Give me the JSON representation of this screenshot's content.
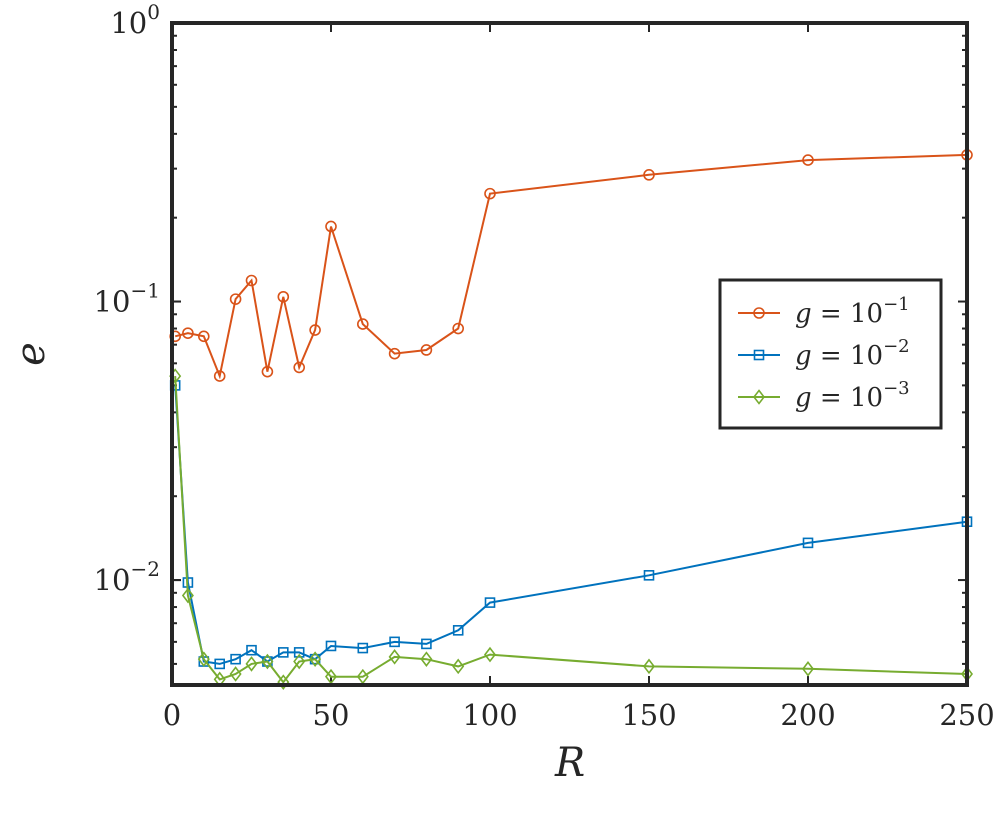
{
  "chart_data": {
    "type": "line",
    "title": "",
    "xlabel": "R",
    "ylabel": "e",
    "xlim": [
      0,
      250
    ],
    "ylim": [
      0.0042,
      1
    ],
    "yscale": "log",
    "x_ticks": [
      0,
      50,
      100,
      150,
      200,
      250
    ],
    "x_tick_labels": [
      "0",
      "50",
      "100",
      "150",
      "200",
      "250"
    ],
    "y_ticks": [
      0.01,
      0.1,
      1
    ],
    "y_tick_labels": [
      {
        "base": "10",
        "exp": "−2"
      },
      {
        "base": "10",
        "exp": "−1"
      },
      {
        "base": "10",
        "exp": "0"
      }
    ],
    "legend_position": "right",
    "series": [
      {
        "name": "g = 10^-1",
        "legend_main": "g = 10",
        "legend_exp": "−1",
        "color": "#D95319",
        "marker": "circle",
        "x": [
          1,
          5,
          10,
          15,
          20,
          25,
          30,
          35,
          40,
          45,
          50,
          60,
          70,
          80,
          90,
          100,
          150,
          200,
          250
        ],
        "values": [
          0.075,
          0.077,
          0.075,
          0.054,
          0.102,
          0.119,
          0.056,
          0.104,
          0.058,
          0.079,
          0.186,
          0.083,
          0.065,
          0.067,
          0.08,
          0.244,
          0.285,
          0.322,
          0.336
        ]
      },
      {
        "name": "g = 10^-2",
        "legend_main": "g = 10",
        "legend_exp": "−2",
        "color": "#0072BD",
        "marker": "square",
        "x": [
          1,
          5,
          10,
          15,
          20,
          25,
          30,
          35,
          40,
          45,
          50,
          60,
          70,
          80,
          90,
          100,
          150,
          200,
          250
        ],
        "values": [
          0.05,
          0.0098,
          0.0051,
          0.005,
          0.0052,
          0.0056,
          0.0051,
          0.0055,
          0.0055,
          0.0052,
          0.0058,
          0.0057,
          0.006,
          0.0059,
          0.0066,
          0.0083,
          0.0104,
          0.0136,
          0.0162
        ]
      },
      {
        "name": "g = 10^-3",
        "legend_main": "g = 10",
        "legend_exp": "−3",
        "color": "#77AC30",
        "marker": "diamond",
        "x": [
          1,
          5,
          10,
          15,
          20,
          25,
          30,
          35,
          40,
          45,
          50,
          60,
          70,
          80,
          90,
          100,
          150,
          200,
          250
        ],
        "values": [
          0.054,
          0.0088,
          0.0052,
          0.0044,
          0.0046,
          0.005,
          0.0051,
          0.0043,
          0.0051,
          0.0052,
          0.0045,
          0.0045,
          0.0053,
          0.0052,
          0.0049,
          0.0054,
          0.0049,
          0.0048,
          0.0046
        ]
      }
    ]
  }
}
